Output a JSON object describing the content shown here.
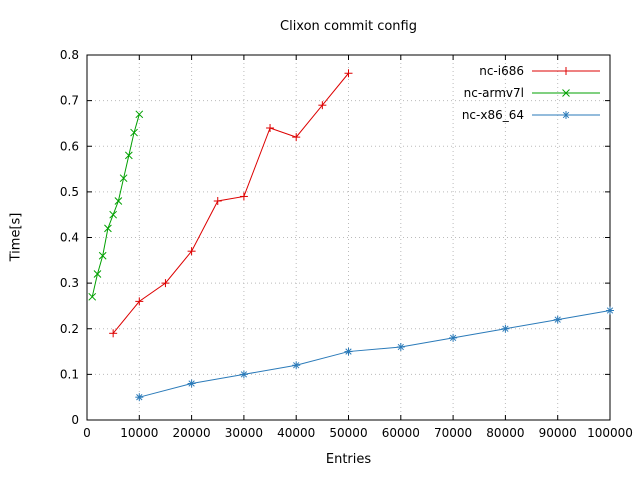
{
  "chart_data": {
    "type": "line",
    "title": "Clixon commit config",
    "xlabel": "Entries",
    "ylabel": "Time[s]",
    "xlim": [
      0,
      100000
    ],
    "ylim": [
      0,
      0.8
    ],
    "xticks": [
      0,
      10000,
      20000,
      30000,
      40000,
      50000,
      60000,
      70000,
      80000,
      90000,
      100000
    ],
    "yticks": [
      0,
      0.1,
      0.2,
      0.3,
      0.4,
      0.5,
      0.6,
      0.7,
      0.8
    ],
    "grid": true,
    "legend_position": "top-right",
    "colors": {
      "grid": "#bbbbbb",
      "border": "#000000"
    },
    "series": [
      {
        "name": "nc-i686",
        "color": "#dd0000",
        "marker": "plus",
        "x": [
          5000,
          10000,
          15000,
          20000,
          25000,
          30000,
          35000,
          40000,
          45000,
          50000
        ],
        "y": [
          0.19,
          0.26,
          0.3,
          0.37,
          0.48,
          0.49,
          0.64,
          0.62,
          0.69,
          0.76
        ]
      },
      {
        "name": "nc-armv7l",
        "color": "#00a000",
        "marker": "cross",
        "x": [
          1000,
          2000,
          3000,
          4000,
          5000,
          6000,
          7000,
          8000,
          9000,
          10000
        ],
        "y": [
          0.27,
          0.32,
          0.36,
          0.42,
          0.45,
          0.48,
          0.53,
          0.58,
          0.63,
          0.67
        ]
      },
      {
        "name": "nc-x86_64",
        "color": "#2a7ab9",
        "marker": "asterisk",
        "x": [
          10000,
          20000,
          30000,
          40000,
          50000,
          60000,
          70000,
          80000,
          90000,
          100000
        ],
        "y": [
          0.05,
          0.08,
          0.1,
          0.12,
          0.15,
          0.16,
          0.18,
          0.2,
          0.22,
          0.24
        ]
      }
    ]
  }
}
